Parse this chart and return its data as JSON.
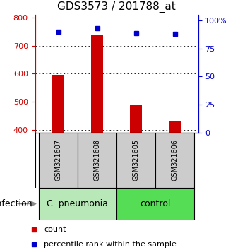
{
  "title": "GDS3573 / 201788_at",
  "samples": [
    "GSM321607",
    "GSM321608",
    "GSM321605",
    "GSM321606"
  ],
  "counts": [
    595,
    740,
    490,
    430
  ],
  "percentiles": [
    90,
    93,
    89,
    88
  ],
  "ylim_left": [
    390,
    810
  ],
  "ylim_right": [
    0,
    105
  ],
  "yticks_left": [
    400,
    500,
    600,
    700,
    800
  ],
  "yticks_right": [
    0,
    25,
    50,
    75,
    100
  ],
  "ytick_labels_right": [
    "0",
    "25",
    "50",
    "75",
    "100%"
  ],
  "bar_color": "#cc0000",
  "dot_color": "#0000cc",
  "group1_label": "C. pneumonia",
  "group2_label": "control",
  "group1_bg": "#b8e8b8",
  "group2_bg": "#55dd55",
  "sample_box_bg": "#cccccc",
  "infection_label": "infection",
  "legend_count_label": "count",
  "legend_pct_label": "percentile rank within the sample",
  "left_color": "#cc0000",
  "right_color": "#0000cc",
  "title_fontsize": 11,
  "tick_fontsize": 8,
  "sample_fontsize": 7,
  "group_fontsize": 9,
  "legend_fontsize": 8,
  "bar_width": 0.3
}
